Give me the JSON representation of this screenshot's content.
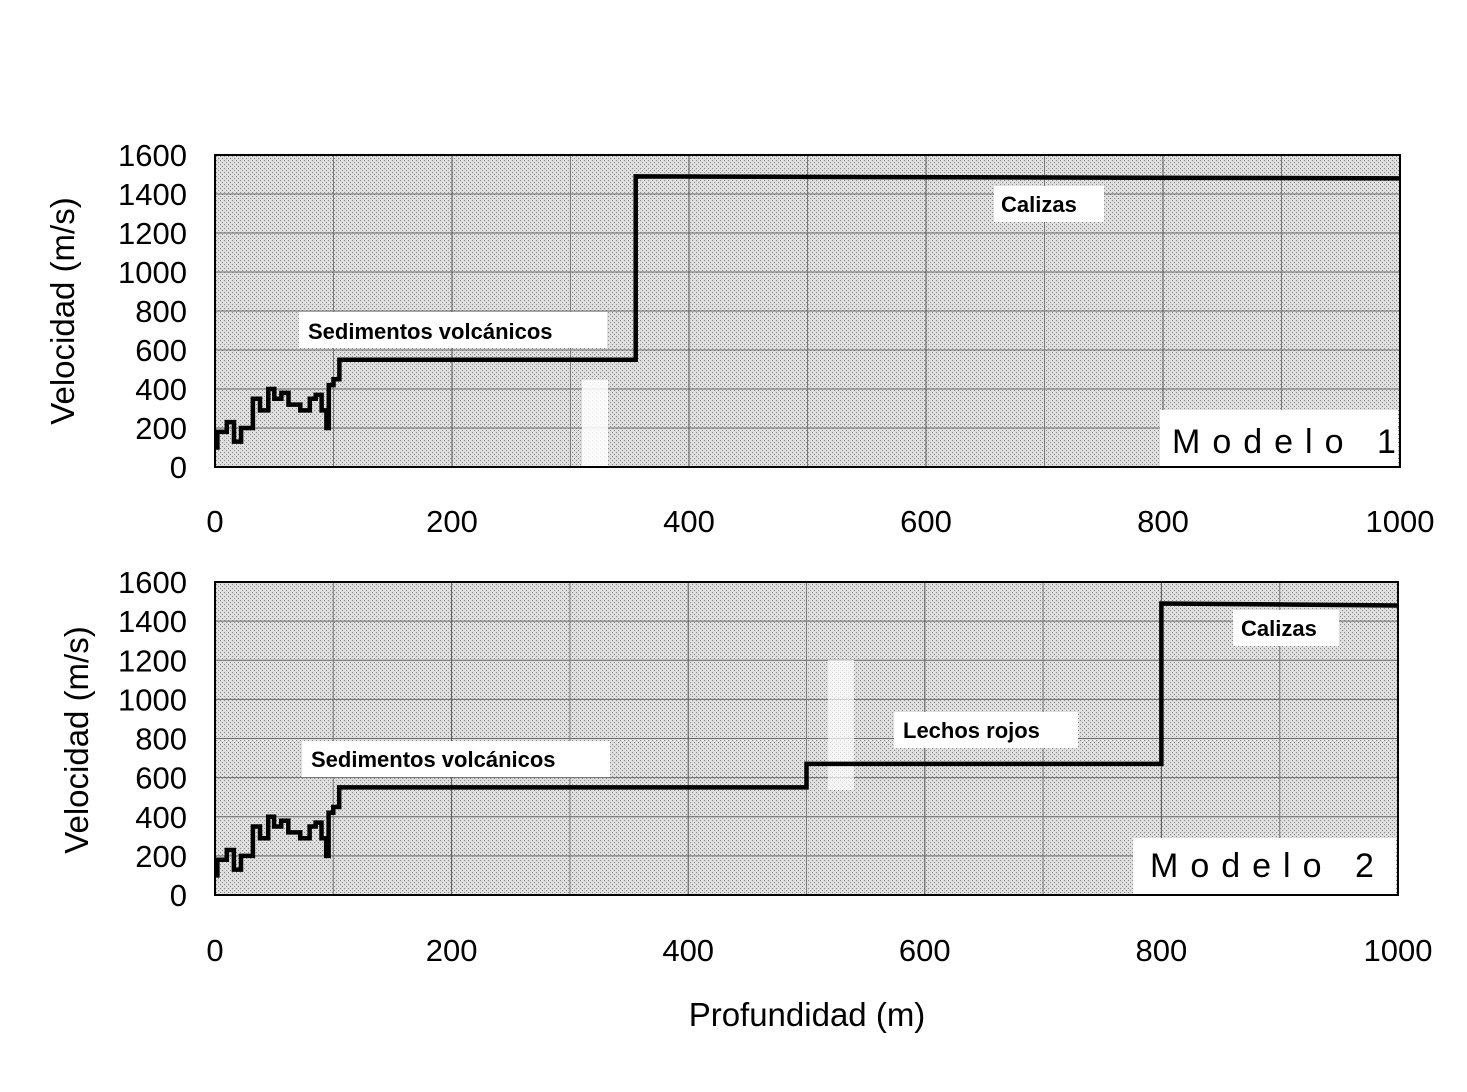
{
  "chart_data": [
    {
      "type": "line",
      "step": true,
      "model_label": "Modelo 1",
      "ylabel": "Velocidad (m/s)",
      "xlabel": "",
      "xlim": [
        0,
        1000
      ],
      "ylim": [
        0,
        1600
      ],
      "x_ticks": [
        "0",
        "200",
        "400",
        "600",
        "800",
        "1000"
      ],
      "y_ticks": [
        "0",
        "200",
        "400",
        "600",
        "800",
        "1000",
        "1200",
        "1400",
        "1600"
      ],
      "grid": true,
      "annotations": [
        "Sedimentos volcánicos",
        "Calizas"
      ],
      "series": [
        {
          "x": [
            0,
            2,
            2,
            10,
            10,
            16,
            16,
            22,
            22,
            32,
            32,
            38,
            38,
            45,
            45,
            50,
            50,
            56,
            56,
            62,
            62,
            72,
            72,
            80,
            80,
            85,
            85,
            90,
            90,
            94,
            94,
            96,
            96,
            100,
            100,
            105,
            105,
            355,
            355,
            1000
          ],
          "y": [
            100,
            100,
            180,
            180,
            230,
            230,
            130,
            130,
            200,
            200,
            350,
            350,
            290,
            290,
            400,
            400,
            350,
            350,
            380,
            380,
            320,
            320,
            290,
            290,
            350,
            350,
            370,
            370,
            290,
            290,
            200,
            200,
            420,
            420,
            450,
            450,
            550,
            550,
            1490,
            1480
          ]
        }
      ]
    },
    {
      "type": "line",
      "step": true,
      "model_label": "Modelo 2",
      "ylabel": "Velocidad (m/s)",
      "xlabel": "Profundidad  (m)",
      "xlim": [
        0,
        1000
      ],
      "ylim": [
        0,
        1600
      ],
      "x_ticks": [
        "0",
        "200",
        "400",
        "600",
        "800",
        "1000"
      ],
      "y_ticks": [
        "0",
        "200",
        "400",
        "600",
        "800",
        "1000",
        "1200",
        "1400",
        "1600"
      ],
      "grid": true,
      "annotations": [
        "Sedimentos volcánicos",
        "Lechos rojos",
        "Calizas"
      ],
      "series": [
        {
          "x": [
            0,
            2,
            2,
            10,
            10,
            16,
            16,
            22,
            22,
            32,
            32,
            38,
            38,
            45,
            45,
            50,
            50,
            56,
            56,
            62,
            62,
            72,
            72,
            80,
            80,
            85,
            85,
            90,
            90,
            94,
            94,
            96,
            96,
            100,
            100,
            105,
            105,
            500,
            500,
            800,
            800,
            1000
          ],
          "y": [
            100,
            100,
            180,
            180,
            230,
            230,
            130,
            130,
            200,
            200,
            350,
            350,
            290,
            290,
            400,
            400,
            350,
            350,
            380,
            380,
            320,
            320,
            290,
            290,
            350,
            350,
            370,
            370,
            290,
            290,
            200,
            200,
            420,
            420,
            450,
            450,
            550,
            550,
            670,
            670,
            1490,
            1480
          ]
        }
      ]
    }
  ]
}
